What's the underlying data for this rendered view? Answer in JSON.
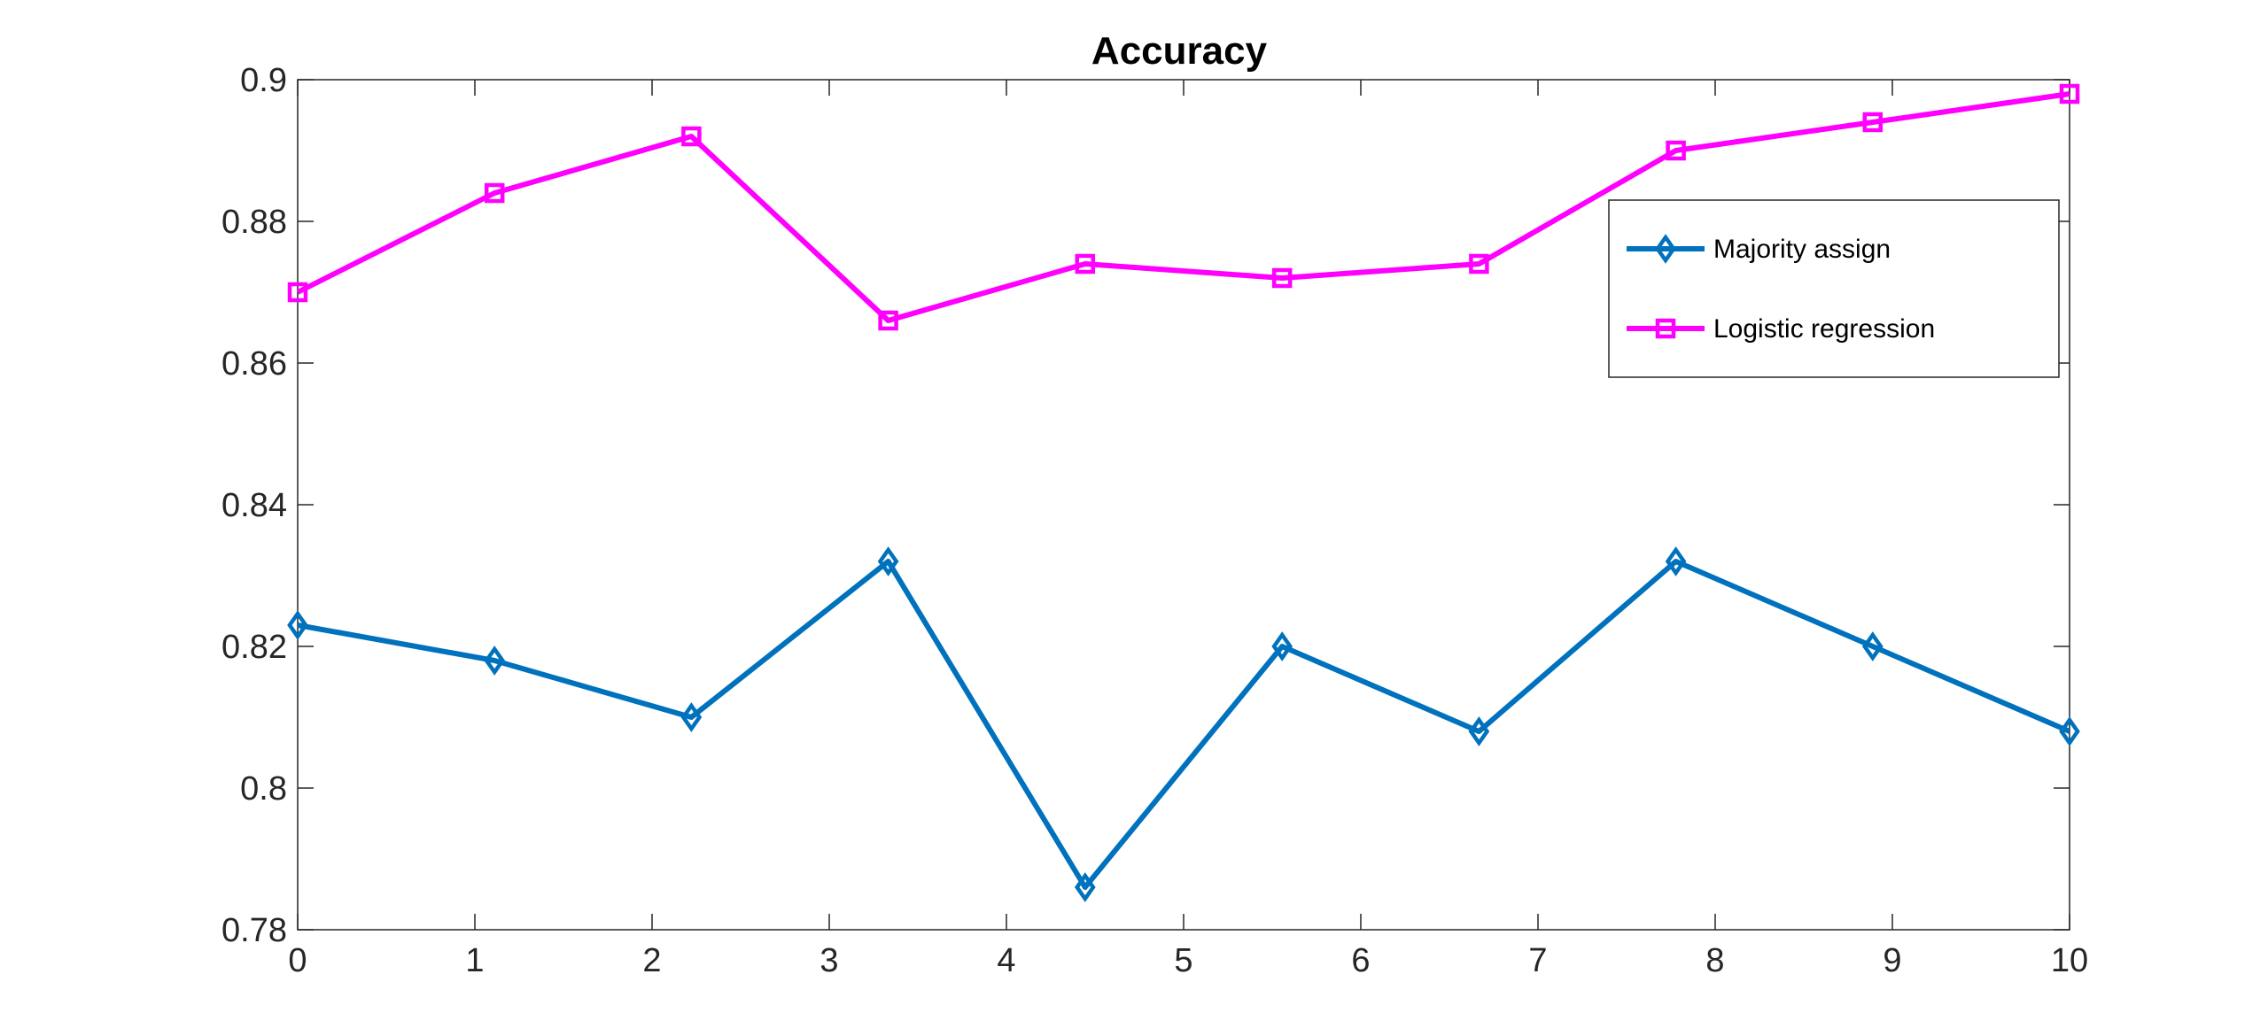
{
  "chart_data": {
    "type": "line",
    "title": "Accuracy",
    "xlabel": "",
    "ylabel": "",
    "xlim": [
      0,
      10
    ],
    "ylim": [
      0.78,
      0.9
    ],
    "x_ticks": [
      0,
      1,
      2,
      3,
      4,
      5,
      6,
      7,
      8,
      9,
      10
    ],
    "x_tick_labels": [
      "0",
      "1",
      "2",
      "3",
      "4",
      "5",
      "6",
      "7",
      "8",
      "9",
      "10"
    ],
    "y_ticks": [
      0.78,
      0.8,
      0.82,
      0.84,
      0.86,
      0.88,
      0.9
    ],
    "y_tick_labels": [
      "0.78",
      "0.8",
      "0.82",
      "0.84",
      "0.86",
      "0.88",
      "0.9"
    ],
    "grid": false,
    "legend_position": "top-right",
    "x": [
      0,
      1.111,
      2.222,
      3.333,
      4.444,
      5.556,
      6.667,
      7.778,
      8.889,
      10
    ],
    "series": [
      {
        "name": "Majority assign",
        "marker": "diamond",
        "color": "#0072BD",
        "values": [
          0.823,
          0.818,
          0.81,
          0.832,
          0.786,
          0.82,
          0.808,
          0.832,
          0.82,
          0.808
        ]
      },
      {
        "name": "Logistic regression",
        "marker": "square",
        "color": "#FF00FF",
        "values": [
          0.87,
          0.884,
          0.892,
          0.866,
          0.874,
          0.872,
          0.874,
          0.89,
          0.894,
          0.898
        ]
      }
    ]
  }
}
